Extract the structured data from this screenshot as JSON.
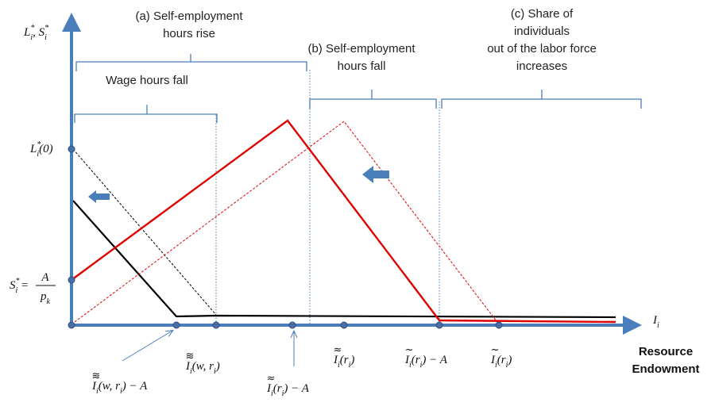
{
  "y_axis_label": [
    {
      "text": "L"
    },
    {
      "text": "*",
      "pos": "sup"
    },
    {
      "text": "i",
      "pos": "sub"
    },
    {
      "text": ", S"
    },
    {
      "text": "*",
      "pos": "sup"
    },
    {
      "text": "i",
      "pos": "sub"
    }
  ],
  "x_axis_label": [
    {
      "text": "I"
    },
    {
      "text": "i",
      "pos": "sub"
    }
  ],
  "x_axis_title": [
    "Resource",
    "Endowment"
  ],
  "regions": {
    "a": [
      "(a) Self-employment",
      "hours rise"
    ],
    "wage": [
      "Wage hours fall"
    ],
    "b": [
      "(b) Self-employment",
      "hours fall"
    ],
    "c": [
      "(c) Share of",
      "individuals",
      "out of the labor force",
      "increases"
    ]
  },
  "l_label": [
    {
      "text": "L"
    },
    {
      "text": "*",
      "pos": "sup"
    },
    {
      "text": "i",
      "pos": "sub"
    },
    {
      "text": "(0)"
    }
  ],
  "s_label": {
    "parts": [
      {
        "text": "S"
      },
      {
        "text": "*",
        "pos": "sup"
      },
      {
        "text": "i",
        "pos": "sub"
      },
      {
        "text": " ="
      }
    ],
    "numerator": "A",
    "denominator": [
      {
        "text": "p"
      },
      {
        "text": "k",
        "pos": "sub"
      }
    ]
  },
  "x_labels": [
    {
      "accent": "≋",
      "parts": [
        {
          "text": "I"
        },
        {
          "text": "i",
          "pos": "sub"
        },
        {
          "text": "(w, r"
        },
        {
          "text": "i",
          "pos": "sub"
        },
        {
          "text": ")"
        }
      ]
    },
    {
      "accent": "≋",
      "parts": [
        {
          "text": "I"
        },
        {
          "text": "i",
          "pos": "sub"
        },
        {
          "text": "(w, r"
        },
        {
          "text": "i",
          "pos": "sub"
        },
        {
          "text": ") − A"
        }
      ]
    },
    {
      "accent": "≈",
      "parts": [
        {
          "text": "I"
        },
        {
          "text": "i",
          "pos": "sub"
        },
        {
          "text": "(r"
        },
        {
          "text": "i",
          "pos": "sub"
        },
        {
          "text": ") − A"
        }
      ]
    },
    {
      "accent": "≈",
      "parts": [
        {
          "text": "I"
        },
        {
          "text": "i",
          "pos": "sub"
        },
        {
          "text": "(r"
        },
        {
          "text": "i",
          "pos": "sub"
        },
        {
          "text": ")"
        }
      ]
    },
    {
      "accent": "~",
      "parts": [
        {
          "text": "I"
        },
        {
          "text": "i",
          "pos": "sub"
        },
        {
          "text": "(r"
        },
        {
          "text": "i",
          "pos": "sub"
        },
        {
          "text": ") − A"
        }
      ]
    },
    {
      "accent": "~",
      "parts": [
        {
          "text": "I"
        },
        {
          "text": "i",
          "pos": "sub"
        },
        {
          "text": "(r"
        },
        {
          "text": "i",
          "pos": "sub"
        },
        {
          "text": ")"
        }
      ]
    }
  ]
}
